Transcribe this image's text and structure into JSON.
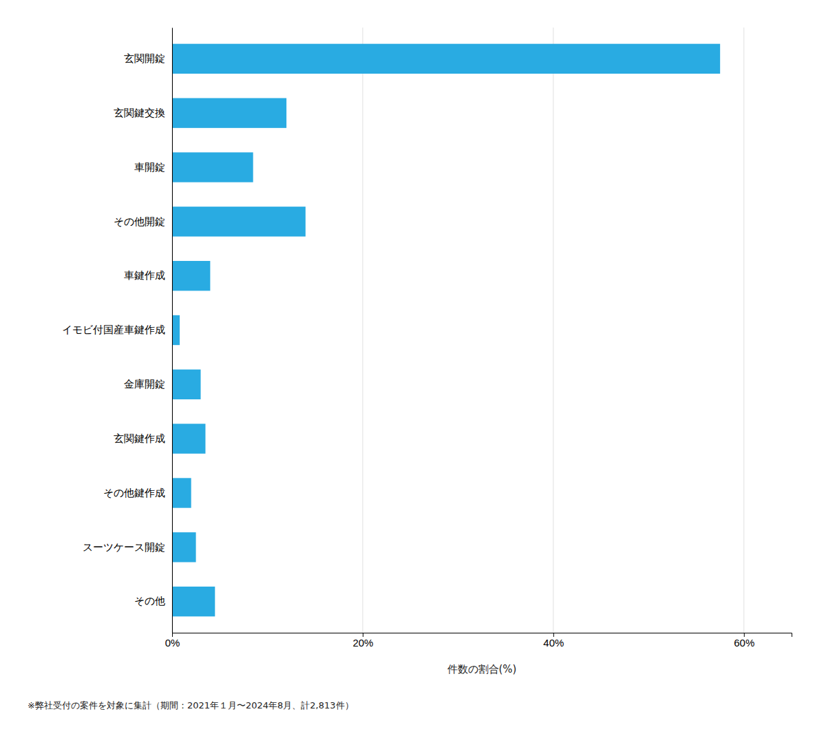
{
  "chart_data": {
    "type": "bar",
    "orientation": "horizontal",
    "categories": [
      "玄関開錠",
      "玄関鍵交換",
      "車開錠",
      "その他開錠",
      "車鍵作成",
      "イモビ付国産車鍵作成",
      "金庫開錠",
      "玄関鍵作成",
      "その他鍵作成",
      "スーツケース開錠",
      "その他"
    ],
    "values": [
      57.5,
      12.0,
      8.5,
      14.0,
      4.0,
      0.8,
      3.0,
      3.5,
      2.0,
      2.5,
      4.5
    ],
    "color": "#29ABE2",
    "xlabel": "件数の割合(%)",
    "xlim": [
      0,
      65
    ],
    "xticks": [
      {
        "value": 0,
        "label": "0%"
      },
      {
        "value": 20,
        "label": "20%"
      },
      {
        "value": 40,
        "label": "40%"
      },
      {
        "value": 60,
        "label": "60%"
      }
    ],
    "grid": true,
    "annotations": [
      "※弊社受付の案件を対象に集計（期間：2021年１月〜2024年8月、計2,813件）"
    ]
  }
}
